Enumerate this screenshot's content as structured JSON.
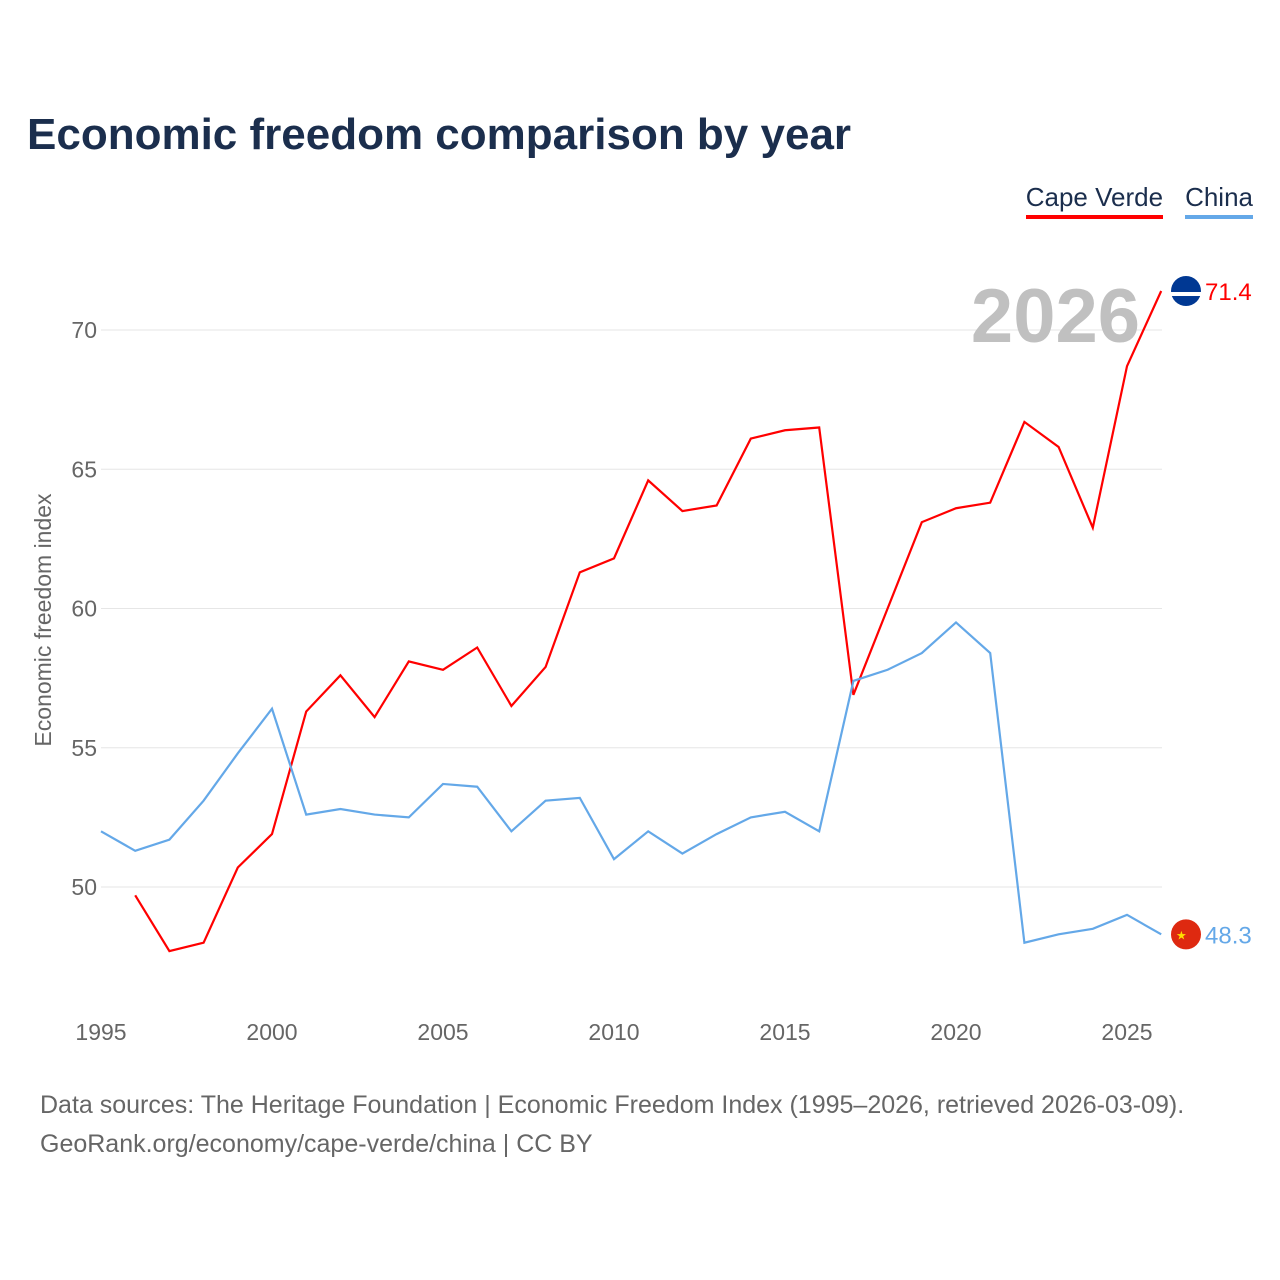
{
  "title": "Economic freedom comparison by year",
  "legend": [
    {
      "label": "Cape Verde",
      "color": "#ff0000"
    },
    {
      "label": "China",
      "color": "#64a8e8"
    }
  ],
  "footer": {
    "line1": "Data sources: The Heritage Foundation | Economic Freedom Index (1995–2026, retrieved 2026-03-09).",
    "line2": "GeoRank.org/economy/cape-verde/china | CC BY"
  },
  "chart_data": {
    "type": "line",
    "title": "Economic freedom comparison by year",
    "ylabel": "Economic freedom index",
    "xlabel": "",
    "year_label": "2026",
    "xlim": [
      1995,
      2026
    ],
    "ylim": [
      45.5,
      73
    ],
    "xticks": [
      1995,
      2000,
      2005,
      2010,
      2015,
      2020,
      2025
    ],
    "yticks": [
      50,
      55,
      60,
      65,
      70
    ],
    "grid": true,
    "legend_position": "top-right",
    "series": [
      {
        "name": "Cape Verde",
        "color": "#ff0000",
        "end_label": "71.4",
        "x": [
          1996,
          1997,
          1998,
          1999,
          2000,
          2001,
          2002,
          2003,
          2004,
          2005,
          2006,
          2007,
          2008,
          2009,
          2010,
          2011,
          2012,
          2013,
          2014,
          2015,
          2016,
          2017,
          2018,
          2019,
          2020,
          2021,
          2022,
          2023,
          2024,
          2025,
          2026
        ],
        "y": [
          49.7,
          47.7,
          48.0,
          50.7,
          51.9,
          56.3,
          57.6,
          56.1,
          58.1,
          57.8,
          58.6,
          56.5,
          57.9,
          61.3,
          61.8,
          64.6,
          63.5,
          63.7,
          66.1,
          66.4,
          66.5,
          56.9,
          60.0,
          63.1,
          63.6,
          63.8,
          66.7,
          65.8,
          62.9,
          68.7,
          71.4
        ]
      },
      {
        "name": "China",
        "color": "#64a8e8",
        "end_label": "48.3",
        "x": [
          1995,
          1996,
          1997,
          1998,
          1999,
          2000,
          2001,
          2002,
          2003,
          2004,
          2005,
          2006,
          2007,
          2008,
          2009,
          2010,
          2011,
          2012,
          2013,
          2014,
          2015,
          2016,
          2017,
          2018,
          2019,
          2020,
          2021,
          2022,
          2023,
          2024,
          2025,
          2026
        ],
        "y": [
          52.0,
          51.3,
          51.7,
          53.1,
          54.8,
          56.4,
          52.6,
          52.8,
          52.6,
          52.5,
          53.7,
          53.6,
          52.0,
          53.1,
          53.2,
          51.0,
          52.0,
          51.2,
          51.9,
          52.5,
          52.7,
          52.0,
          57.4,
          57.8,
          58.4,
          59.5,
          58.4,
          48.0,
          48.3,
          48.5,
          49.0,
          48.3
        ]
      }
    ]
  }
}
